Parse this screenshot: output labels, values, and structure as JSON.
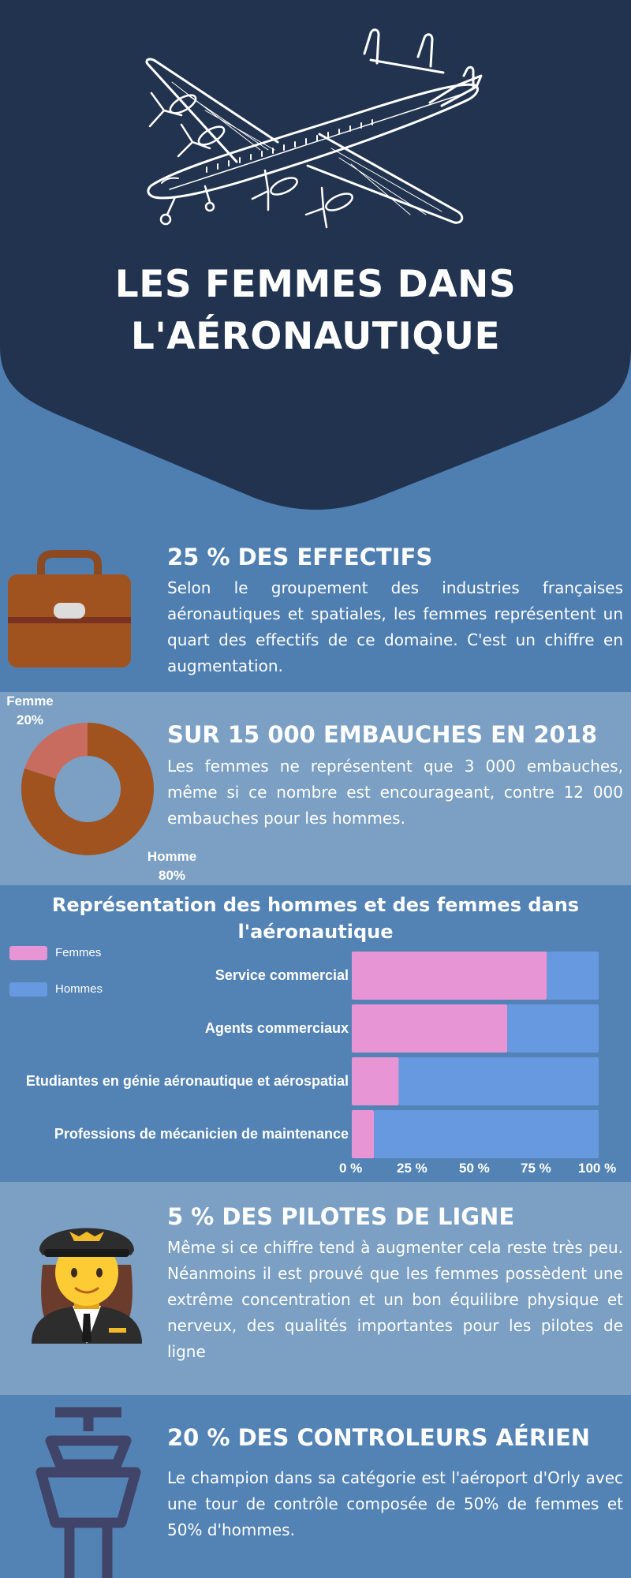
{
  "header": {
    "title_line1": "LES FEMMES DANS",
    "title_line2": "L'AÉRONAUTIQUE",
    "background_color": "#21334f",
    "icon": "airplane-icon"
  },
  "sections": {
    "effectifs": {
      "heading": "25 % DES EFFECTIFS",
      "text": "Selon le groupement des industries françaises aéronautiques et spatiales, les femmes représentent un quart des effectifs de ce domaine. C'est un chiffre en augmentation.",
      "icon": "briefcase-icon"
    },
    "embauches": {
      "heading": "SUR 15 000 EMBAUCHES EN 2018",
      "text": "Les femmes ne représentent que 3 000 embauches, même si ce nombre est encourageant, contre 12 000 embauches pour les hommes."
    },
    "pilotes": {
      "heading": "5 % DES PILOTES DE LIGNE",
      "text": "Même si ce chiffre tend à augmenter cela reste très peu. Néanmoins il est prouvé que les femmes possèdent une extrême concentration et un bon équilibre physique et nerveux, des qualités importantes pour les pilotes de ligne",
      "icon": "woman-pilot-icon"
    },
    "controleurs": {
      "heading": "20 % DES CONTROLEURS AÉRIEN",
      "text": "Le champion dans sa catégorie est l'aéroport d'Orly avec une tour de contrôle composée de 50% de femmes et 50% d'hommes.",
      "icon": "control-tower-icon"
    }
  },
  "chart_data": [
    {
      "type": "pie",
      "style": "donut",
      "categories": [
        "Femme",
        "Homme"
      ],
      "values": [
        20,
        80
      ],
      "value_labels": [
        "20%",
        "80%"
      ],
      "colors": [
        "#c86c60",
        "#a0521f"
      ]
    },
    {
      "type": "bar",
      "orientation": "horizontal",
      "stacked": true,
      "title_line1": "Représentation des hommes et des femmes dans",
      "title_line2": "l'aéronautique",
      "categories": [
        "Service commercial",
        "Agents commerciaux",
        "Etudiantes en génie aéronautique et aérospatial",
        "Professions de mécanicien de maintenance"
      ],
      "series": [
        {
          "name": "Femmes",
          "values": [
            79,
            63,
            19,
            9
          ],
          "color": "#e795d4"
        },
        {
          "name": "Hommes",
          "values": [
            21,
            37,
            81,
            91
          ],
          "color": "#6799e0"
        }
      ],
      "xlim": [
        0,
        100
      ],
      "tick_labels": [
        "0 %",
        "25 %",
        "50 %",
        "75 %",
        "100 %"
      ],
      "legend_position": "top-left",
      "grid": false
    }
  ]
}
